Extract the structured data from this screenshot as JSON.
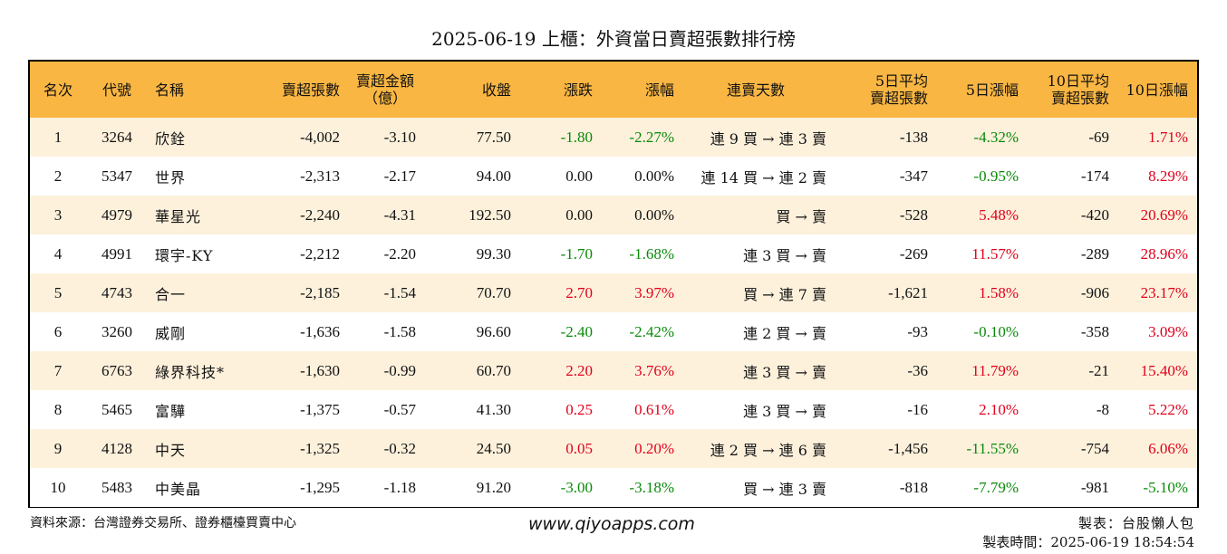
{
  "title": "2025-06-19 上櫃：外資當日賣超張數排行榜",
  "headers": {
    "rank": "名次",
    "code": "代號",
    "name": "名稱",
    "sell_lots": "賣超張數",
    "sell_amt_1": "賣超金額",
    "sell_amt_2": "（億）",
    "close": "收盤",
    "change": "漲跌",
    "pct": "漲幅",
    "streak": "連賣天數",
    "avg5_1": "5日平均",
    "avg5_2": "賣超張數",
    "pct5": "5日漲幅",
    "avg10_1": "10日平均",
    "avg10_2": "賣超張數",
    "pct10": "10日漲幅"
  },
  "rows": [
    {
      "rank": "1",
      "code": "3264",
      "name": "欣銓",
      "lots": "-4,002",
      "amt": "-3.10",
      "close": "77.50",
      "chg": "-1.80",
      "chg_dir": "neg",
      "pct": "-2.27%",
      "pct_dir": "neg",
      "streak": "連 9 買 → 連 3 賣",
      "avg5": "-138",
      "pct5": "-4.32%",
      "pct5_dir": "neg",
      "avg10": "-69",
      "pct10": "1.71%",
      "pct10_dir": "pos"
    },
    {
      "rank": "2",
      "code": "5347",
      "name": "世界",
      "lots": "-2,313",
      "amt": "-2.17",
      "close": "94.00",
      "chg": "0.00",
      "chg_dir": "",
      "pct": "0.00%",
      "pct_dir": "",
      "streak": "連 14 買 → 連 2 賣",
      "avg5": "-347",
      "pct5": "-0.95%",
      "pct5_dir": "neg",
      "avg10": "-174",
      "pct10": "8.29%",
      "pct10_dir": "pos"
    },
    {
      "rank": "3",
      "code": "4979",
      "name": "華星光",
      "lots": "-2,240",
      "amt": "-4.31",
      "close": "192.50",
      "chg": "0.00",
      "chg_dir": "",
      "pct": "0.00%",
      "pct_dir": "",
      "streak": "買 → 賣",
      "avg5": "-528",
      "pct5": "5.48%",
      "pct5_dir": "pos",
      "avg10": "-420",
      "pct10": "20.69%",
      "pct10_dir": "pos"
    },
    {
      "rank": "4",
      "code": "4991",
      "name": "環宇-KY",
      "lots": "-2,212",
      "amt": "-2.20",
      "close": "99.30",
      "chg": "-1.70",
      "chg_dir": "neg",
      "pct": "-1.68%",
      "pct_dir": "neg",
      "streak": "連 3 買 → 賣",
      "avg5": "-269",
      "pct5": "11.57%",
      "pct5_dir": "pos",
      "avg10": "-289",
      "pct10": "28.96%",
      "pct10_dir": "pos"
    },
    {
      "rank": "5",
      "code": "4743",
      "name": "合一",
      "lots": "-2,185",
      "amt": "-1.54",
      "close": "70.70",
      "chg": "2.70",
      "chg_dir": "pos",
      "pct": "3.97%",
      "pct_dir": "pos",
      "streak": "買 → 連 7 賣",
      "avg5": "-1,621",
      "pct5": "1.58%",
      "pct5_dir": "pos",
      "avg10": "-906",
      "pct10": "23.17%",
      "pct10_dir": "pos"
    },
    {
      "rank": "6",
      "code": "3260",
      "name": "威剛",
      "lots": "-1,636",
      "amt": "-1.58",
      "close": "96.60",
      "chg": "-2.40",
      "chg_dir": "neg",
      "pct": "-2.42%",
      "pct_dir": "neg",
      "streak": "連 2 買 → 賣",
      "avg5": "-93",
      "pct5": "-0.10%",
      "pct5_dir": "neg",
      "avg10": "-358",
      "pct10": "3.09%",
      "pct10_dir": "pos"
    },
    {
      "rank": "7",
      "code": "6763",
      "name": "綠界科技*",
      "lots": "-1,630",
      "amt": "-0.99",
      "close": "60.70",
      "chg": "2.20",
      "chg_dir": "pos",
      "pct": "3.76%",
      "pct_dir": "pos",
      "streak": "連 3 買 → 賣",
      "avg5": "-36",
      "pct5": "11.79%",
      "pct5_dir": "pos",
      "avg10": "-21",
      "pct10": "15.40%",
      "pct10_dir": "pos"
    },
    {
      "rank": "8",
      "code": "5465",
      "name": "富驊",
      "lots": "-1,375",
      "amt": "-0.57",
      "close": "41.30",
      "chg": "0.25",
      "chg_dir": "pos",
      "pct": "0.61%",
      "pct_dir": "pos",
      "streak": "連 3 買 → 賣",
      "avg5": "-16",
      "pct5": "2.10%",
      "pct5_dir": "pos",
      "avg10": "-8",
      "pct10": "5.22%",
      "pct10_dir": "pos"
    },
    {
      "rank": "9",
      "code": "4128",
      "name": "中天",
      "lots": "-1,325",
      "amt": "-0.32",
      "close": "24.50",
      "chg": "0.05",
      "chg_dir": "pos",
      "pct": "0.20%",
      "pct_dir": "pos",
      "streak": "連 2 買 → 連 6 賣",
      "avg5": "-1,456",
      "pct5": "-11.55%",
      "pct5_dir": "neg",
      "avg10": "-754",
      "pct10": "6.06%",
      "pct10_dir": "pos"
    },
    {
      "rank": "10",
      "code": "5483",
      "name": "中美晶",
      "lots": "-1,295",
      "amt": "-1.18",
      "close": "91.20",
      "chg": "-3.00",
      "chg_dir": "neg",
      "pct": "-3.18%",
      "pct_dir": "neg",
      "streak": "買 → 連 3 賣",
      "avg5": "-818",
      "pct5": "-7.79%",
      "pct5_dir": "neg",
      "avg10": "-981",
      "pct10": "-5.10%",
      "pct10_dir": "neg"
    }
  ],
  "footer": {
    "source": "資料來源：台灣證券交易所、證券櫃檯買賣中心",
    "website": "www.qiyoapps.com",
    "maker": "製表：台股懶人包",
    "made_time": "製表時間：2025-06-19 18:54:54"
  },
  "colors": {
    "header_bg": "#f9b642",
    "row_alt_bg": "#fdf1dc",
    "positive": "#e0001b",
    "negative": "#0a8a0a"
  }
}
